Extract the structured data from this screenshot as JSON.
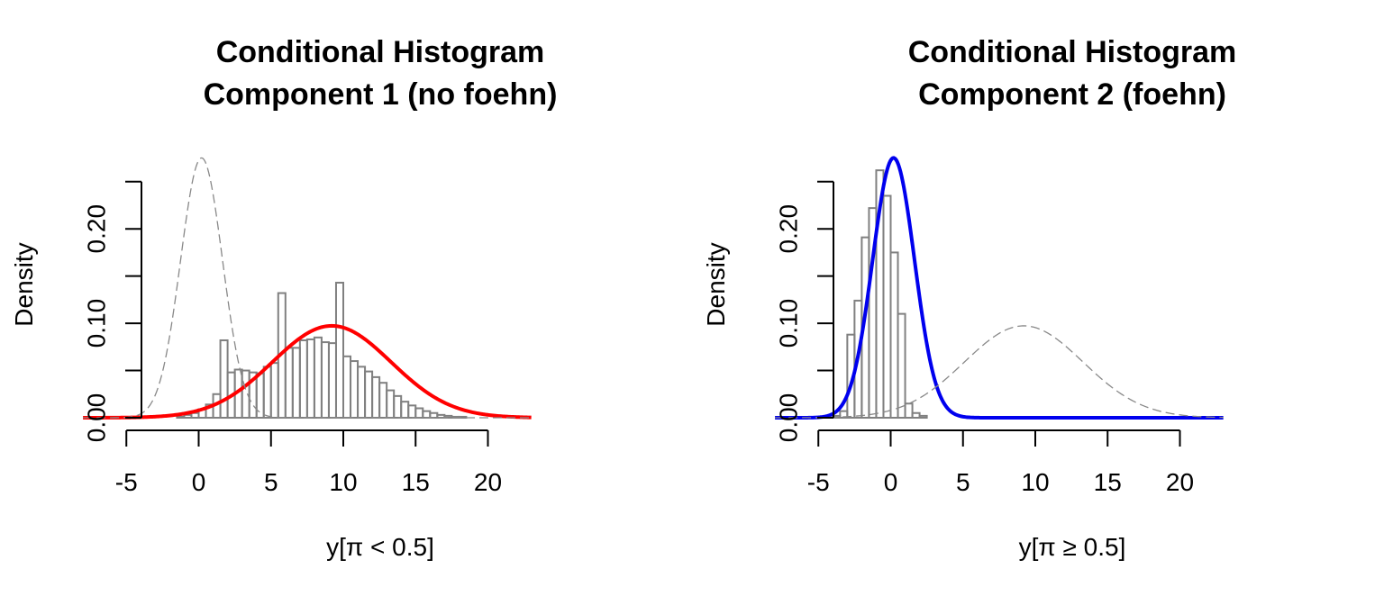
{
  "chart_data": [
    {
      "type": "bar",
      "title_line1": "Conditional Histogram",
      "title_line2": "Component 1 (no foehn)",
      "xlabel": "y[π < 0.5]",
      "ylabel": "Density",
      "xlim": [
        -8,
        23
      ],
      "ylim": [
        0,
        0.25
      ],
      "x_ticks": [
        -5,
        0,
        5,
        10,
        15,
        20
      ],
      "y_ticks": [
        "0.00",
        "0.10",
        "0.20"
      ],
      "bin_width": 0.5,
      "bin_start": -1.5,
      "histogram_values": [
        0.001,
        0.003,
        0.005,
        0.009,
        0.014,
        0.025,
        0.082,
        0.048,
        0.051,
        0.05,
        0.048,
        0.047,
        0.054,
        0.058,
        0.132,
        0.074,
        0.074,
        0.082,
        0.083,
        0.085,
        0.08,
        0.079,
        0.143,
        0.065,
        0.06,
        0.054,
        0.049,
        0.043,
        0.037,
        0.029,
        0.023,
        0.017,
        0.013,
        0.01,
        0.007,
        0.005,
        0.003,
        0.002,
        0.001,
        0.001
      ],
      "series": [
        {
          "name": "Component 1 (no foehn)",
          "style": "solid",
          "color": "#ff0000",
          "mean": 9.2,
          "sd": 4.1
        },
        {
          "name": "Component 2 (foehn)",
          "style": "dashed",
          "color": "#888888",
          "mean": 0.2,
          "sd": 1.45
        }
      ],
      "hist_color": "#808080"
    },
    {
      "type": "bar",
      "title_line1": "Conditional Histogram",
      "title_line2": "Component 2 (foehn)",
      "xlabel": "y[π ≥ 0.5]",
      "ylabel": "Density",
      "xlim": [
        -8,
        23
      ],
      "ylim": [
        0,
        0.25
      ],
      "x_ticks": [
        -5,
        0,
        5,
        10,
        15,
        20
      ],
      "y_ticks": [
        "0.00",
        "0.10",
        "0.20"
      ],
      "bin_width": 0.5,
      "bin_start": -4.0,
      "histogram_values": [
        0.002,
        0.007,
        0.088,
        0.124,
        0.191,
        0.222,
        0.262,
        0.235,
        0.175,
        0.11,
        0.015,
        0.005,
        0.002
      ],
      "series": [
        {
          "name": "Component 2 (foehn)",
          "style": "solid",
          "color": "#0000ee",
          "mean": 0.2,
          "sd": 1.45
        },
        {
          "name": "Component 1 (no foehn)",
          "style": "dashed",
          "color": "#888888",
          "mean": 9.2,
          "sd": 4.1
        }
      ],
      "hist_color": "#808080"
    }
  ]
}
